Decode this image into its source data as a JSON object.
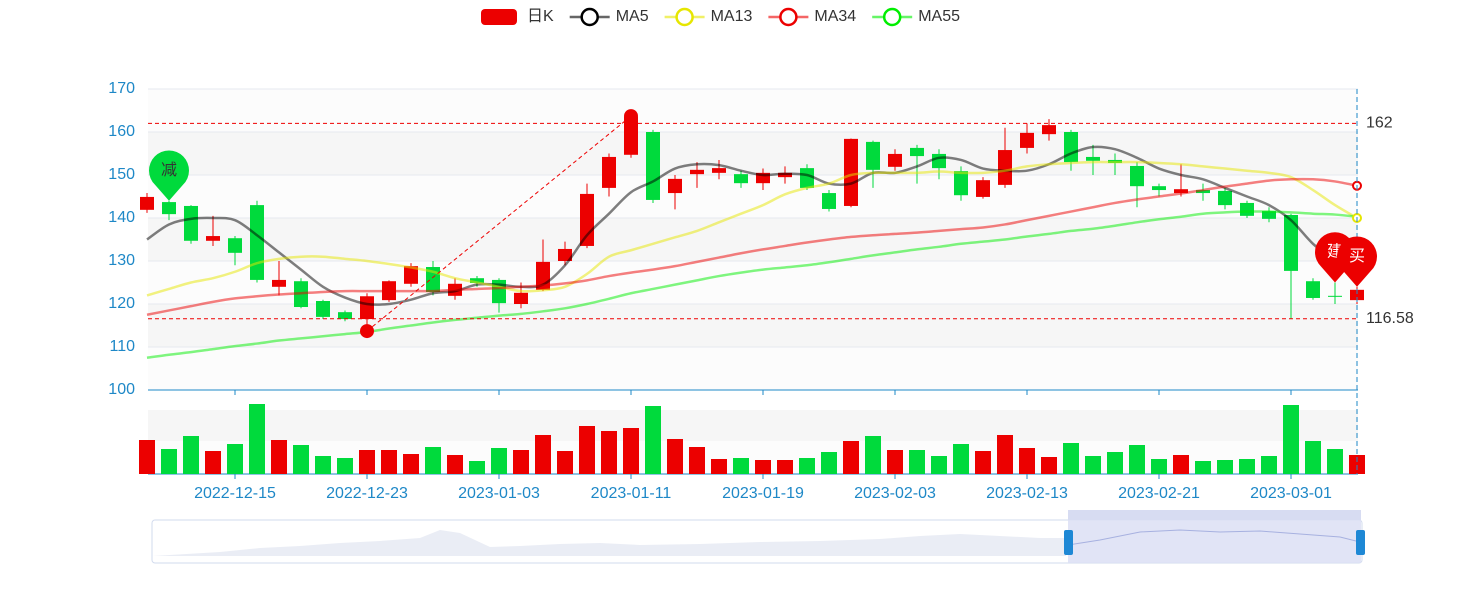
{
  "chart_data": {
    "type": "candlestick",
    "categories": [
      null,
      null,
      null,
      null,
      "2022-12-15",
      null,
      null,
      null,
      null,
      null,
      "2022-12-23",
      null,
      null,
      null,
      null,
      null,
      "2023-01-03",
      null,
      null,
      null,
      null,
      null,
      "2023-01-11",
      null,
      null,
      null,
      null,
      null,
      "2023-01-19",
      null,
      null,
      null,
      null,
      null,
      "2023-02-03",
      null,
      null,
      null,
      null,
      null,
      "2023-02-13",
      null,
      null,
      null,
      null,
      null,
      "2023-02-21",
      null,
      null,
      null,
      null,
      null,
      "2023-03-01",
      null,
      null,
      null
    ],
    "candles": {
      "name": "日K",
      "up_color": "#ec0000",
      "down_color": "#00da3c",
      "open": [
        141.9,
        143.7,
        142.8,
        134.7,
        135.3,
        143,
        124,
        125.3,
        120.7,
        118.1,
        116.5,
        120.9,
        124.7,
        128.6,
        121.9,
        126,
        125.6,
        120,
        123.3,
        130,
        133.5,
        147,
        154.7,
        160,
        145.8,
        150.2,
        150.5,
        150.2,
        148.1,
        149.5,
        151.6,
        145.8,
        142.8,
        157.7,
        151.9,
        156.3,
        154.9,
        150.9,
        144.9,
        147.7,
        156.3,
        159.5,
        160,
        154.2,
        153.5,
        152.1,
        147.4,
        145.8,
        146.5,
        146.3,
        143.5,
        141.6,
        140.7,
        125.3,
        121.9,
        120.9
      ],
      "close": [
        144.9,
        140.9,
        134.7,
        135.8,
        131.9,
        125.6,
        125.6,
        119.3,
        117,
        116.5,
        121.8,
        125.3,
        128.8,
        122.8,
        124.7,
        124.9,
        120.2,
        122.6,
        129.8,
        132.8,
        145.6,
        154.2,
        163.5,
        144.2,
        149.1,
        151.2,
        151.6,
        148.1,
        150.5,
        150.5,
        147,
        142.1,
        158.4,
        151.2,
        154.9,
        154.4,
        151.6,
        145.3,
        148.8,
        155.8,
        159.8,
        161.6,
        153,
        153.3,
        152.8,
        147.4,
        146.5,
        146.7,
        145.8,
        143,
        140.5,
        139.8,
        127.7,
        121.4,
        121.8,
        123.3
      ],
      "low": [
        141.2,
        139.5,
        134,
        133.5,
        129,
        125,
        122,
        119,
        116.5,
        116,
        113.7,
        120.5,
        124,
        122,
        121,
        124,
        118,
        119,
        123,
        129,
        133,
        145,
        154,
        143.5,
        142,
        147,
        149,
        147,
        146.5,
        148,
        146.5,
        141.5,
        142.5,
        147,
        151,
        148,
        149,
        144,
        144.5,
        147,
        155,
        158,
        151,
        150,
        150,
        142.5,
        145,
        145,
        144,
        142,
        140,
        139,
        116.58,
        121,
        120,
        120
      ],
      "high": [
        145.8,
        144,
        143,
        140.5,
        135.8,
        144,
        130,
        126,
        121,
        118.5,
        122.5,
        125.5,
        129.5,
        130,
        126,
        126.5,
        126,
        125,
        135,
        134.5,
        148,
        155,
        163.7,
        160.5,
        150,
        153,
        153.5,
        151,
        151.5,
        152,
        152.5,
        146.5,
        158.5,
        158,
        156,
        157,
        156,
        152,
        149.5,
        161,
        162,
        163,
        160.5,
        157,
        155,
        153,
        148,
        152.5,
        148,
        147,
        144,
        142.5,
        141,
        126,
        125,
        124
      ]
    },
    "ma": [
      {
        "name": "MA5",
        "color": "#000000",
        "values": [
          135,
          138.5,
          139.8,
          140,
          139.5,
          136,
          132,
          128,
          124,
          121.5,
          120,
          120,
          121,
          122.5,
          123,
          124.5,
          124.5,
          124,
          124.5,
          129,
          136,
          141,
          146,
          148.5,
          151.5,
          152.5,
          152.3,
          151,
          150,
          150.3,
          150,
          148,
          148,
          150.5,
          150.5,
          152,
          154,
          153.5,
          151.5,
          151,
          151,
          152.5,
          155,
          156.5,
          156,
          154,
          151.5,
          150,
          149,
          147,
          145,
          143,
          139.5,
          134,
          130,
          126.5
        ]
      },
      {
        "name": "MA13",
        "color": "#e6e600",
        "values": [
          122,
          123.5,
          125,
          126,
          127.5,
          129.5,
          130.5,
          131,
          131,
          130.5,
          130,
          129.3,
          128.5,
          127.5,
          126,
          125,
          124,
          123,
          123.2,
          124,
          127,
          131,
          132.5,
          134,
          135.5,
          137,
          139,
          141,
          143,
          145.5,
          147,
          148,
          150,
          150.5,
          150.5,
          150.5,
          150.8,
          150.5,
          150.5,
          151,
          152,
          152.5,
          152.8,
          153,
          153,
          153,
          152.8,
          152.5,
          152,
          151.5,
          151,
          150.5,
          149.5,
          146.5,
          143,
          140
        ]
      },
      {
        "name": "MA34",
        "color": "#ec0000",
        "values": [
          117.5,
          118.5,
          119.5,
          120.5,
          121.3,
          121.8,
          122.2,
          122.5,
          122.8,
          123,
          123,
          123,
          123,
          123,
          123.3,
          123.5,
          123.7,
          124,
          124.3,
          124.8,
          125.5,
          126.5,
          127.3,
          128,
          128.8,
          129.8,
          130.8,
          131.8,
          132.7,
          133.5,
          134.3,
          135,
          135.6,
          136,
          136.3,
          136.6,
          137,
          137.4,
          137.8,
          138.5,
          139.5,
          140.5,
          141.5,
          142.5,
          143.5,
          144.3,
          145,
          145.7,
          146.5,
          147.3,
          148,
          148.7,
          149,
          149,
          148.5,
          147.5
        ]
      },
      {
        "name": "MA55",
        "color": "#00ee00",
        "values": [
          107.5,
          108.2,
          108.8,
          109.5,
          110.2,
          110.8,
          111.5,
          112,
          112.5,
          113,
          113.5,
          114.3,
          115,
          115.7,
          116.3,
          116.8,
          117.3,
          117.7,
          118.3,
          119,
          120,
          121.2,
          122.5,
          123.5,
          124.5,
          125.5,
          126.5,
          127.3,
          128,
          128.5,
          129,
          129.7,
          130.5,
          131.3,
          132,
          132.7,
          133.3,
          134,
          134.5,
          135,
          135.7,
          136.3,
          137,
          137.5,
          138.2,
          139,
          139.7,
          140.3,
          141,
          141.3,
          141.5,
          141.5,
          141.3,
          141,
          140.8,
          140.3
        ]
      }
    ],
    "volume": {
      "values": [
        34,
        25,
        38,
        23,
        30,
        70,
        34,
        29,
        18,
        16,
        24,
        24,
        20,
        27,
        19,
        13,
        26,
        24,
        39,
        23,
        48,
        43,
        46,
        68,
        35,
        27,
        15,
        16,
        14,
        14,
        16,
        22,
        33,
        38,
        24,
        24,
        18,
        30,
        23,
        39,
        26,
        17,
        31,
        18,
        22,
        29,
        15,
        19,
        13,
        14,
        15,
        18,
        69,
        33,
        25,
        19
      ],
      "ylim": [
        0,
        70
      ]
    },
    "signals": [
      null,
      {
        "label": "减",
        "color": "#00da3c"
      },
      null,
      null,
      null,
      null,
      null,
      null,
      null,
      null,
      null,
      null,
      null,
      null,
      null,
      null,
      null,
      null,
      null,
      null,
      null,
      null,
      null,
      null,
      null,
      null,
      null,
      null,
      null,
      null,
      null,
      null,
      null,
      null,
      null,
      null,
      null,
      null,
      null,
      null,
      null,
      null,
      null,
      null,
      null,
      null,
      null,
      null,
      null,
      null,
      null,
      null,
      null,
      null,
      {
        "label": "建",
        "color": "#ec0000"
      },
      {
        "label": "买",
        "color": "#ec0000"
      }
    ],
    "mark_lines": [
      162,
      116.58
    ],
    "ylim": [
      100,
      170
    ],
    "yticks": [
      100,
      110,
      120,
      130,
      140,
      150,
      160,
      170
    ],
    "grid": true
  }
}
